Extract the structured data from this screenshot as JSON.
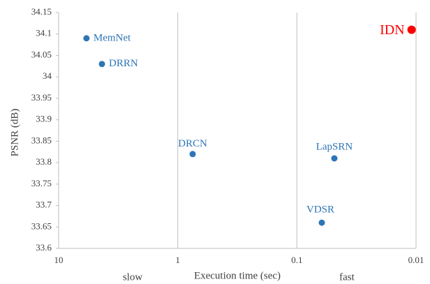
{
  "chart_data": {
    "type": "scatter",
    "x_label": "Execution time (sec)",
    "y_label": "PSNR (dB)",
    "x_scale": "log",
    "x_reversed": true,
    "xlim": [
      10,
      0.01
    ],
    "xticks": [
      10,
      1,
      0.1,
      0.01
    ],
    "ylim": [
      33.6,
      34.15
    ],
    "yticks": [
      33.6,
      33.65,
      33.7,
      33.75,
      33.8,
      33.85,
      33.9,
      33.95,
      34,
      34.05,
      34.1,
      34.15
    ],
    "grid": "x",
    "annotations": [
      "slow",
      "fast"
    ],
    "points": [
      {
        "label": "MemNet",
        "x": 5.84,
        "y": 34.09,
        "color": "#2e75b6"
      },
      {
        "label": "DRRN",
        "x": 4.33,
        "y": 34.03,
        "color": "#2e75b6"
      },
      {
        "label": "DRCN",
        "x": 0.75,
        "y": 33.82,
        "color": "#2e75b6"
      },
      {
        "label": "LapSRN",
        "x": 0.0485,
        "y": 33.81,
        "color": "#2e75b6"
      },
      {
        "label": "VDSR",
        "x": 0.0618,
        "y": 33.66,
        "color": "#2e75b6"
      },
      {
        "label": "IDN",
        "x": 0.0109,
        "y": 34.11,
        "color": "#ff0000"
      }
    ]
  }
}
